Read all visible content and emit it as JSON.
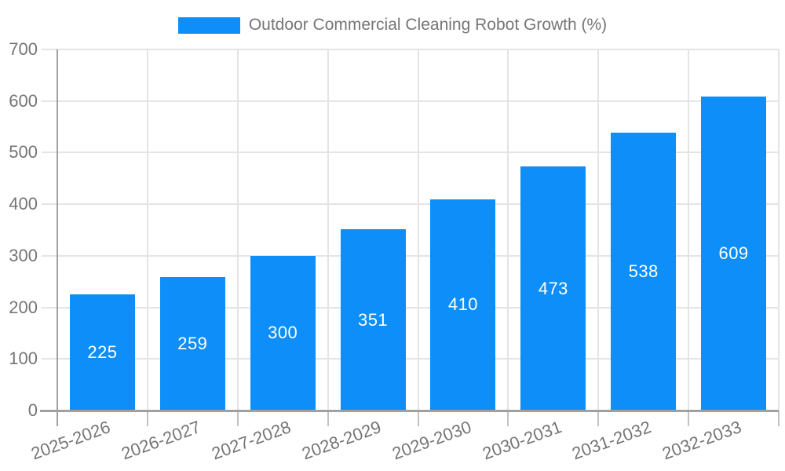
{
  "legend": {
    "label": "Outdoor Commercial Cleaning Robot Growth (%)"
  },
  "chart_data": {
    "type": "bar",
    "title": "Outdoor Commercial Cleaning Robot Growth (%)",
    "categories": [
      "2025-2026",
      "2026-2027",
      "2027-2028",
      "2028-2029",
      "2029-2030",
      "2030-2031",
      "2031-2032",
      "2032-2033"
    ],
    "values": [
      225,
      259,
      300,
      351,
      410,
      473,
      538,
      609
    ],
    "xlabel": "",
    "ylabel": "",
    "ylim": [
      0,
      700
    ],
    "yticks": [
      0,
      100,
      200,
      300,
      400,
      500,
      600,
      700
    ],
    "grid": true,
    "legend_position": "top-center",
    "value_labels": "centered-inside-bars",
    "x_tick_rotation_deg": -20,
    "colors": {
      "bar": "#0d8ef8",
      "text": "#757575",
      "grid": "#e4e4e4",
      "axis": "#a0a0a0",
      "tick": "#c2c2c2",
      "value_label": "#ffffff",
      "background": "#ffffff"
    }
  }
}
